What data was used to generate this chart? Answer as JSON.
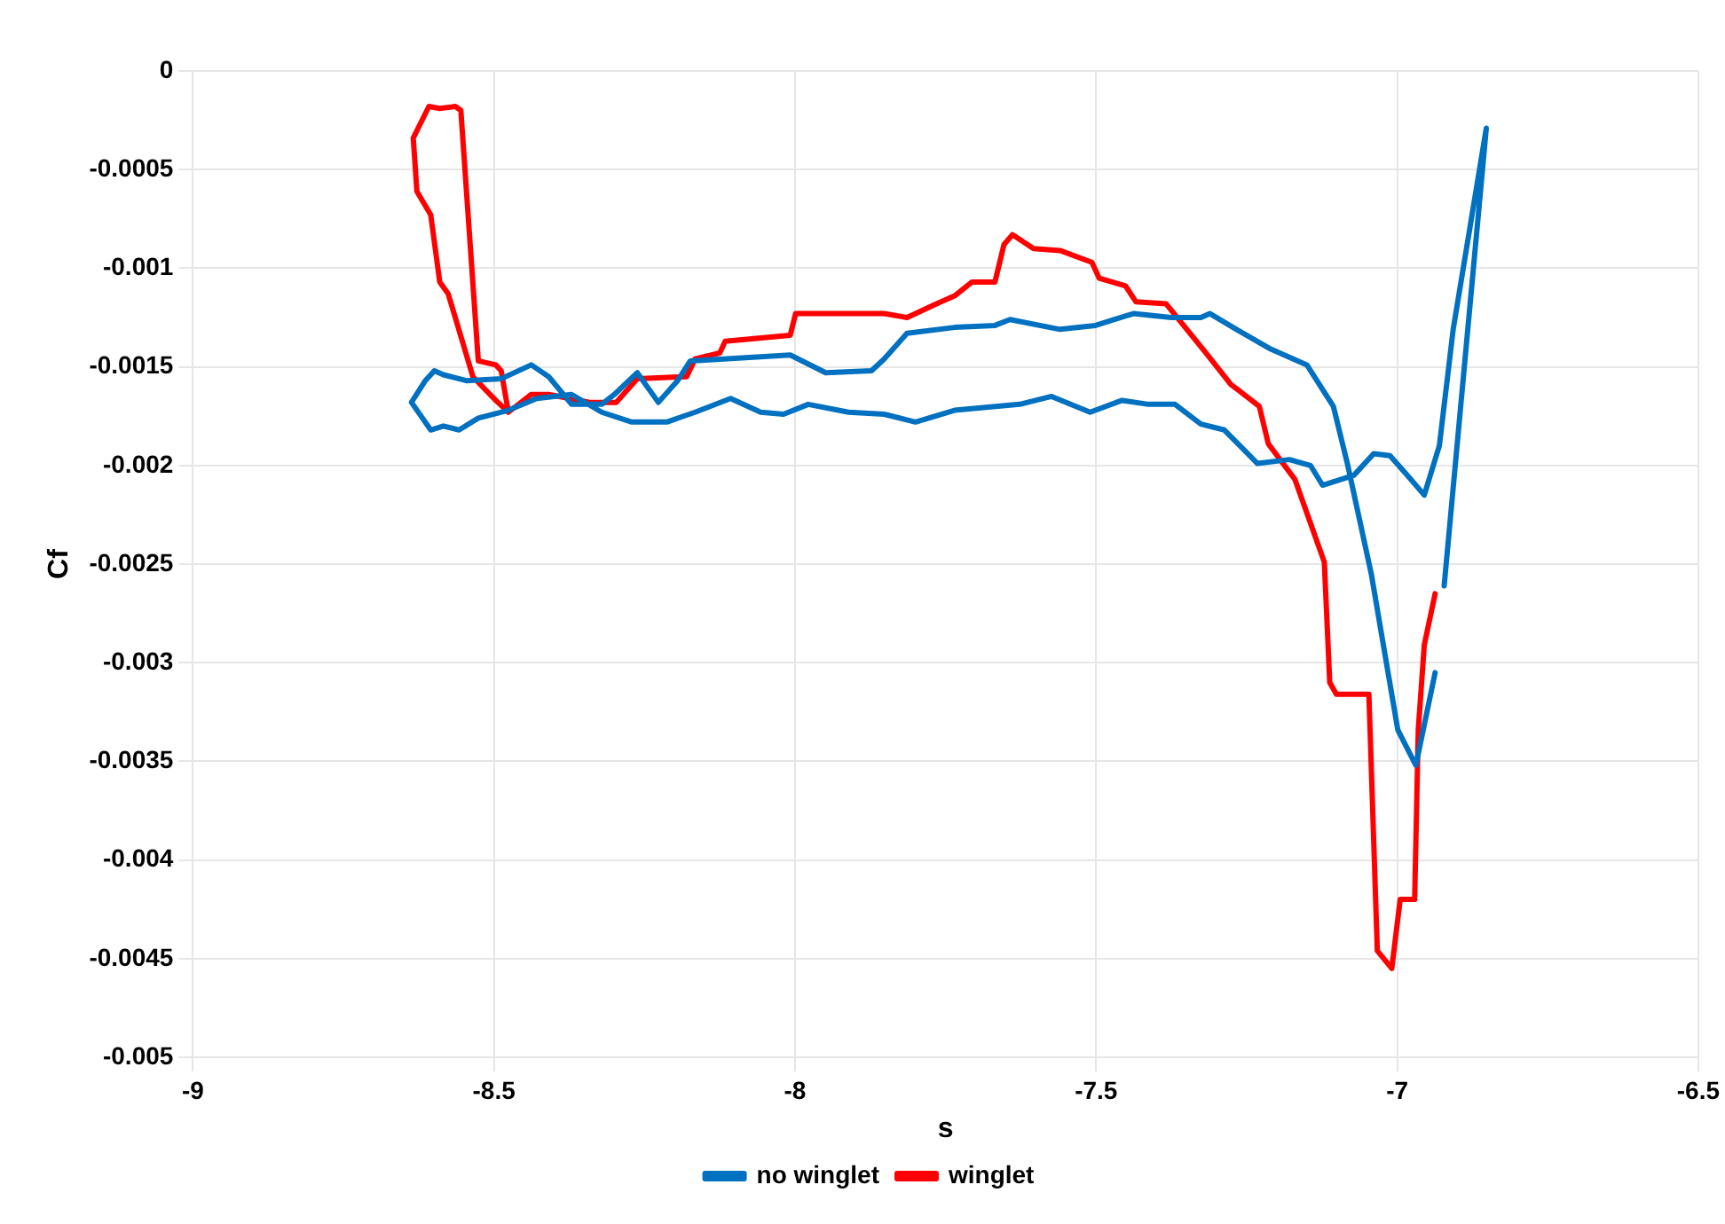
{
  "chart_data": {
    "type": "line",
    "xlabel": "s",
    "ylabel": "Cf",
    "xlim": [
      -9,
      -6.5
    ],
    "xticks": [
      -9,
      -8.5,
      -8,
      -7.5,
      -7,
      -6.5
    ],
    "ylim": [
      -0.005,
      0
    ],
    "yticks": [
      -0.005,
      -0.0045,
      -0.004,
      -0.0035,
      -0.003,
      -0.0025,
      -0.002,
      -0.0015,
      -0.001,
      -0.0005,
      0
    ],
    "grid": true,
    "legend": "bottom",
    "marker": "none",
    "line_style": "solid",
    "series": [
      {
        "name": "no winglet",
        "color": "#0070c0",
        "x": [
          -6.937,
          -6.969,
          -6.999,
          -7.043,
          -7.082,
          -7.106,
          -7.15,
          -7.21,
          -7.267,
          -7.311,
          -7.326,
          -7.375,
          -7.438,
          -7.501,
          -7.56,
          -7.643,
          -7.668,
          -7.735,
          -7.814,
          -7.852,
          -7.873,
          -7.949,
          -8.008,
          -8.174,
          -8.195,
          -8.227,
          -8.262,
          -8.3,
          -8.321,
          -8.371,
          -8.409,
          -8.438,
          -8.488,
          -8.546,
          -8.584,
          -8.599,
          -8.614,
          -8.637,
          -8.605,
          -8.584,
          -8.558,
          -8.526,
          -8.476,
          -8.429,
          -8.371,
          -8.321,
          -8.271,
          -8.213,
          -8.166,
          -8.107,
          -8.057,
          -8.019,
          -7.978,
          -7.911,
          -7.852,
          -7.8,
          -7.735,
          -7.627,
          -7.574,
          -7.51,
          -7.457,
          -7.413,
          -7.369,
          -7.326,
          -7.287,
          -7.232,
          -7.179,
          -7.144,
          -7.124,
          -7.072,
          -7.039,
          -7.012,
          -6.983,
          -6.955,
          -6.93,
          -6.907,
          -6.852,
          -6.922
        ],
        "values": [
          -0.00305,
          -0.00352,
          -0.00334,
          -0.00255,
          -0.002,
          -0.0017,
          -0.00149,
          -0.00141,
          -0.00131,
          -0.00123,
          -0.00125,
          -0.00125,
          -0.00123,
          -0.00129,
          -0.00131,
          -0.00126,
          -0.00129,
          -0.0013,
          -0.00133,
          -0.00146,
          -0.00152,
          -0.00153,
          -0.00144,
          -0.00147,
          -0.00157,
          -0.00168,
          -0.00153,
          -0.00164,
          -0.00169,
          -0.00169,
          -0.00155,
          -0.00149,
          -0.00156,
          -0.00157,
          -0.00154,
          -0.00152,
          -0.00157,
          -0.00168,
          -0.00182,
          -0.0018,
          -0.00182,
          -0.00176,
          -0.00172,
          -0.00166,
          -0.00164,
          -0.00173,
          -0.00178,
          -0.00178,
          -0.00173,
          -0.00166,
          -0.00173,
          -0.00174,
          -0.00169,
          -0.00173,
          -0.00174,
          -0.00178,
          -0.00172,
          -0.00169,
          -0.00165,
          -0.00173,
          -0.00167,
          -0.00169,
          -0.00169,
          -0.00179,
          -0.00182,
          -0.00199,
          -0.00197,
          -0.002,
          -0.0021,
          -0.00205,
          -0.00194,
          -0.00195,
          -0.00205,
          -0.00215,
          -0.0019,
          -0.00131,
          -0.00029,
          -0.00261
        ]
      },
      {
        "name": "winglet",
        "color": "#ff0000",
        "x": [
          -6.937,
          -6.955,
          -6.965,
          -6.971,
          -6.995,
          -7.009,
          -7.033,
          -7.047,
          -7.101,
          -7.112,
          -7.121,
          -7.17,
          -7.214,
          -7.229,
          -7.267,
          -7.276,
          -7.32,
          -7.384,
          -7.434,
          -7.451,
          -7.495,
          -7.507,
          -7.56,
          -7.604,
          -7.639,
          -7.653,
          -7.668,
          -7.706,
          -7.735,
          -7.765,
          -7.814,
          -7.852,
          -7.999,
          -8.008,
          -8.116,
          -8.125,
          -8.166,
          -8.18,
          -8.262,
          -8.297,
          -8.341,
          -8.409,
          -8.438,
          -8.476,
          -8.488,
          -8.497,
          -8.526,
          -8.555,
          -8.564,
          -8.59,
          -8.608,
          -8.634,
          -8.628,
          -8.605,
          -8.59,
          -8.576,
          -8.535,
          -8.497,
          -8.476
        ],
        "values": [
          -0.00265,
          -0.00291,
          -0.00334,
          -0.0042,
          -0.0042,
          -0.00455,
          -0.00446,
          -0.00316,
          -0.00316,
          -0.0031,
          -0.00249,
          -0.00207,
          -0.00189,
          -0.0017,
          -0.00161,
          -0.00159,
          -0.00142,
          -0.00118,
          -0.00117,
          -0.00109,
          -0.00105,
          -0.00097,
          -0.00091,
          -0.0009,
          -0.00083,
          -0.00088,
          -0.00107,
          -0.00107,
          -0.00114,
          -0.00118,
          -0.00125,
          -0.00123,
          -0.00123,
          -0.00134,
          -0.00137,
          -0.00143,
          -0.00146,
          -0.00155,
          -0.00156,
          -0.00168,
          -0.00168,
          -0.00164,
          -0.00164,
          -0.00173,
          -0.00152,
          -0.00149,
          -0.00147,
          -0.0002,
          -0.00018,
          -0.00019,
          -0.00018,
          -0.00034,
          -0.00061,
          -0.00073,
          -0.00107,
          -0.00113,
          -0.00155,
          -0.00167,
          -0.00173
        ]
      }
    ]
  }
}
